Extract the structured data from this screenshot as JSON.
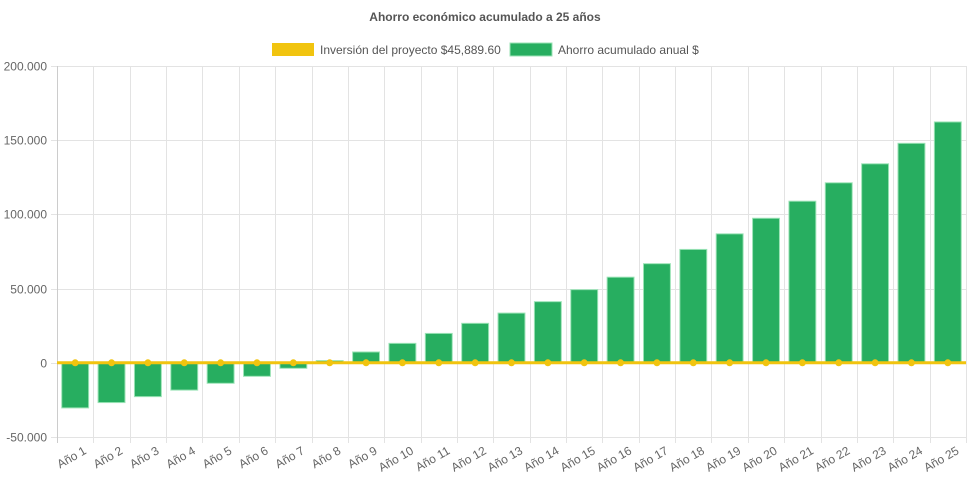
{
  "chart_data": {
    "type": "bar",
    "title": "Ahorro económico acumulado a 25 años",
    "xlabel": "",
    "ylabel": "",
    "ylim": [
      -50000,
      200000
    ],
    "yticks": [
      200000,
      150000,
      100000,
      50000,
      0,
      -50000
    ],
    "ytick_labels": [
      "200.000",
      "150.000",
      "100.000",
      "50.000",
      "0",
      "-50.000"
    ],
    "grid": true,
    "legend_position": "top",
    "categories": [
      "Año 1",
      "Año 2",
      "Año 3",
      "Año 4",
      "Año 5",
      "Año 6",
      "Año 7",
      "Año 8",
      "Año 9",
      "Año 10",
      "Año 11",
      "Año 12",
      "Año 13",
      "Año 14",
      "Año 15",
      "Año 16",
      "Año 17",
      "Año 18",
      "Año 19",
      "Año 20",
      "Año 21",
      "Año 22",
      "Año 23",
      "Año 24",
      "Año 25"
    ],
    "series": [
      {
        "name": "Inversión del proyecto $45,889.60",
        "type": "line",
        "color": "#f1c40f",
        "values": [
          0,
          0,
          0,
          0,
          0,
          0,
          0,
          0,
          0,
          0,
          0,
          0,
          0,
          0,
          0,
          0,
          0,
          0,
          0,
          0,
          0,
          0,
          0,
          0,
          0
        ]
      },
      {
        "name": "Ahorro acumulado anual $",
        "type": "bar",
        "color": "#27ae60",
        "values": [
          -30400,
          -26800,
          -22800,
          -18400,
          -13800,
          -9100,
          -3700,
          1500,
          7300,
          13100,
          19800,
          26600,
          33500,
          41200,
          49300,
          57700,
          66800,
          76400,
          86900,
          97400,
          108900,
          121300,
          134100,
          147900,
          162300
        ]
      }
    ]
  }
}
